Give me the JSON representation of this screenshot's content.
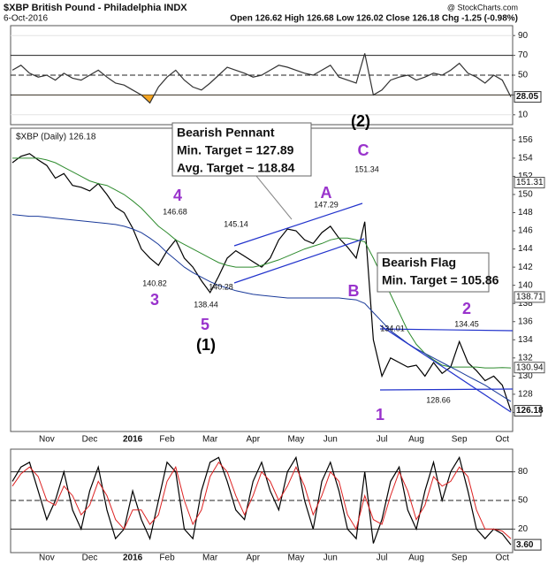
{
  "chart_data": [
    {
      "type": "line",
      "ylim": [
        0,
        100
      ],
      "yticks": [
        10,
        30,
        50,
        70,
        90
      ],
      "grid": true,
      "oversold_fill": "#f5a623",
      "series": [
        {
          "color": "#333333",
          "values": [
            55,
            60,
            52,
            48,
            50,
            45,
            52,
            47,
            45,
            50,
            55,
            48,
            42,
            40,
            35,
            30,
            22,
            38,
            48,
            55,
            45,
            38,
            35,
            42,
            50,
            58,
            55,
            52,
            48,
            50,
            55,
            60,
            58,
            55,
            52,
            50,
            55,
            60,
            48,
            45,
            42,
            72,
            30,
            35,
            45,
            48,
            50,
            45,
            48,
            52,
            50,
            55,
            62,
            52,
            48,
            42,
            50,
            45,
            28.05
          ]
        }
      ]
    },
    {
      "type": "line",
      "title": "$XBP British Pound - Philadelphia INDX",
      "subtitle": "6-Oct-2016",
      "quote": "Open 126.62 High 126.68 Low 126.02 Close 126.18 Chg -1.25 (-0.98%)",
      "source": "@ StockCharts.com",
      "legend_label": "$XBP (Daily) 126.18",
      "ylim": [
        123.9,
        157.3
      ],
      "yticks": [
        126,
        128,
        130,
        132,
        134,
        136,
        138,
        140,
        142,
        144,
        146,
        148,
        150,
        152,
        154,
        156
      ],
      "grid": false,
      "categories": [
        null,
        null,
        null,
        null,
        "Nov",
        null,
        null,
        null,
        null,
        "Dec",
        null,
        null,
        null,
        null,
        "2016",
        null,
        null,
        null,
        "Feb",
        null,
        null,
        null,
        null,
        "Mar",
        null,
        null,
        null,
        null,
        "Apr",
        null,
        null,
        null,
        null,
        "May",
        null,
        null,
        null,
        "Jun",
        null,
        null,
        null,
        null,
        null,
        "Jul",
        null,
        null,
        null,
        "Aug",
        null,
        null,
        null,
        null,
        "Sep",
        null,
        null,
        null,
        null,
        "Oct",
        null
      ],
      "series": [
        {
          "color": "#000000",
          "values": [
            153.5,
            154.2,
            154.5,
            153.8,
            153.2,
            151.8,
            152.3,
            151.0,
            150.8,
            150.4,
            151.2,
            150.0,
            148.6,
            148.0,
            146.3,
            144.0,
            143.0,
            142.2,
            143.8,
            145.0,
            143.0,
            142.0,
            140.5,
            139.2,
            141.0,
            143.0,
            143.8,
            143.2,
            142.6,
            142.0,
            143.0,
            145.0,
            146.2,
            146.0,
            145.0,
            144.6,
            145.8,
            146.5,
            145.2,
            144.2,
            143.0,
            147.0,
            134.0,
            130.0,
            132.0,
            131.5,
            131.0,
            131.2,
            130.0,
            131.5,
            130.3,
            131.0,
            133.8,
            131.5,
            130.6,
            129.5,
            130.0,
            129.0,
            126.18
          ]
        },
        {
          "color": "#2e8b2e",
          "values": [
            154,
            154,
            154,
            154,
            153.8,
            153.5,
            153,
            152.5,
            152,
            151.5,
            151.2,
            151,
            150.5,
            150,
            149.3,
            148.5,
            147.5,
            146.5,
            145.8,
            145,
            144.5,
            144,
            143.5,
            143,
            142.5,
            142.2,
            142,
            142,
            142,
            142.2,
            142.5,
            142.8,
            143.2,
            143.6,
            144,
            144.3,
            144.6,
            145,
            145.2,
            145.2,
            145,
            144.8,
            143,
            141,
            139,
            137,
            135,
            133.5,
            132.5,
            131.8,
            131.2,
            131,
            131,
            131,
            131,
            130.9,
            130.9,
            130.94,
            130.9
          ]
        },
        {
          "color": "#1a3a9a",
          "values": [
            147.8,
            147.7,
            147.6,
            147.6,
            147.5,
            147.4,
            147.3,
            147.2,
            147.1,
            147,
            146.9,
            146.8,
            146.7,
            146.5,
            146.2,
            145.8,
            145.2,
            144.5,
            143.6,
            142.8,
            142,
            141.4,
            140.9,
            140.4,
            140,
            139.7,
            139.4,
            139.2,
            139,
            138.9,
            138.8,
            138.7,
            138.6,
            138.6,
            138.6,
            138.6,
            138.6,
            138.6,
            138.6,
            138.5,
            138.4,
            138,
            137,
            136,
            135,
            134.3,
            133.6,
            133,
            132.5,
            132,
            131.5,
            131,
            130.5,
            130,
            129.5,
            129,
            128.4,
            127.8,
            127.2
          ]
        }
      ],
      "right_labels": [
        151.31,
        138.71,
        130.94
      ],
      "annotations": [
        "Bearish Pennant",
        "Min. Target = 127.89",
        "Avg. Target ~ 118.84",
        "Bearish Flag",
        "Min. Target = 105.86",
        "(2)",
        "C",
        "A",
        "B",
        "4",
        "3",
        "5",
        "(1)",
        "1",
        "2",
        "146.68",
        "145.14",
        "147.29",
        "151.34",
        "140.82",
        "140.28",
        "138.44",
        "134.01",
        "134.45",
        "128.66"
      ]
    },
    {
      "type": "line",
      "ylim": [
        0,
        100
      ],
      "yticks": [
        20,
        50,
        80
      ],
      "grid": true,
      "series": [
        {
          "color": "#000000",
          "values": [
            70,
            85,
            90,
            60,
            30,
            50,
            80,
            40,
            20,
            60,
            85,
            40,
            10,
            20,
            60,
            30,
            10,
            50,
            90,
            80,
            20,
            10,
            60,
            90,
            95,
            70,
            40,
            30,
            70,
            90,
            60,
            40,
            80,
            95,
            50,
            20,
            70,
            90,
            60,
            20,
            10,
            80,
            5,
            30,
            70,
            85,
            40,
            20,
            60,
            90,
            50,
            80,
            95,
            60,
            20,
            10,
            20,
            15,
            3.6
          ],
          "value_labels": [
            null,
            null,
            null,
            null,
            null,
            null,
            null,
            null,
            null,
            null,
            null,
            null,
            null,
            null,
            null,
            null,
            null,
            null,
            null,
            null,
            null,
            null,
            null,
            null,
            null,
            null,
            null,
            null,
            null,
            null,
            null,
            null,
            null,
            null,
            null,
            null,
            null,
            null,
            null,
            null,
            null,
            null,
            null,
            null,
            null,
            null,
            null,
            null,
            null,
            null,
            null,
            null,
            null,
            null,
            null,
            null,
            null,
            null,
            "3.60"
          ]
        },
        {
          "color": "#dd2222",
          "values": [
            65,
            78,
            85,
            75,
            50,
            45,
            65,
            55,
            35,
            45,
            70,
            55,
            30,
            20,
            40,
            40,
            25,
            35,
            70,
            85,
            50,
            25,
            40,
            75,
            90,
            80,
            55,
            35,
            55,
            80,
            70,
            50,
            65,
            85,
            65,
            35,
            55,
            80,
            70,
            35,
            20,
            55,
            30,
            25,
            55,
            80,
            60,
            30,
            45,
            75,
            65,
            70,
            85,
            75,
            40,
            20,
            20,
            18,
            10
          ]
        }
      ]
    }
  ]
}
